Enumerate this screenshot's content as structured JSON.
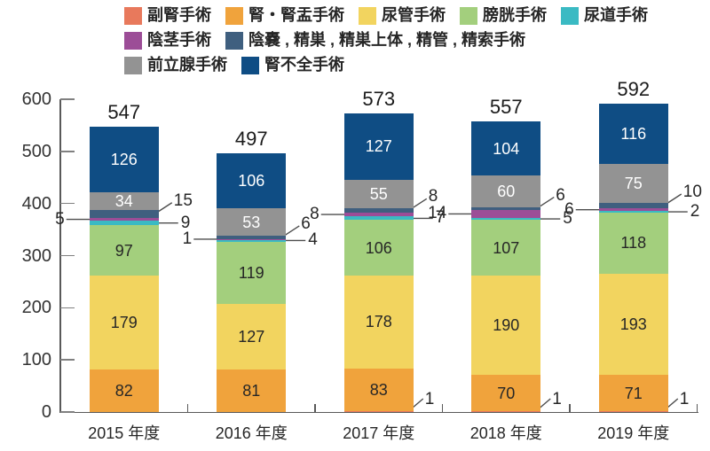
{
  "chart_data": {
    "type": "bar",
    "stacked": true,
    "title": "",
    "xlabel": "",
    "ylabel": "",
    "categories": [
      "2015 年度",
      "2016 年度",
      "2017 年度",
      "2018 年度",
      "2019 年度"
    ],
    "series": [
      {
        "name": "副腎手術",
        "color": "#E8795C",
        "values": [
          0,
          0,
          1,
          1,
          1
        ]
      },
      {
        "name": "腎・腎盂手術",
        "color": "#F0A33C",
        "values": [
          82,
          81,
          83,
          70,
          71
        ]
      },
      {
        "name": "尿管手術",
        "color": "#F2D45F",
        "values": [
          179,
          127,
          178,
          190,
          193
        ]
      },
      {
        "name": "膀胱手術",
        "color": "#A3CF7D",
        "values": [
          97,
          119,
          106,
          107,
          118
        ]
      },
      {
        "name": "尿道手術",
        "color": "#3ABAC3",
        "values": [
          9,
          4,
          7,
          5,
          2
        ]
      },
      {
        "name": "陰茎手術",
        "color": "#9C4D97",
        "values": [
          5,
          1,
          8,
          14,
          6
        ]
      },
      {
        "name": "陰嚢 , 精巣 , 精巣上体 , 精管 , 精索手術",
        "color": "#3F5F7F",
        "values": [
          15,
          6,
          8,
          6,
          10
        ]
      },
      {
        "name": "前立腺手術",
        "color": "#939393",
        "values": [
          34,
          53,
          55,
          60,
          75
        ]
      },
      {
        "name": "腎不全手術",
        "color": "#0F4D84",
        "values": [
          126,
          106,
          127,
          104,
          116
        ]
      }
    ],
    "totals": [
      547,
      497,
      573,
      557,
      592
    ],
    "ylim": [
      0,
      600
    ],
    "yticks": [
      0,
      100,
      200,
      300,
      400,
      500,
      600
    ],
    "grid": false,
    "legend_position": "top",
    "legend_rows": [
      [
        0,
        1,
        2,
        3,
        4
      ],
      [
        5,
        6
      ],
      [
        7,
        8
      ]
    ],
    "annotation_series": {
      "left_horizontal": 5,
      "right_diagonal": 6,
      "right_horizontal": 4,
      "bottom_diagonal": 0
    }
  }
}
